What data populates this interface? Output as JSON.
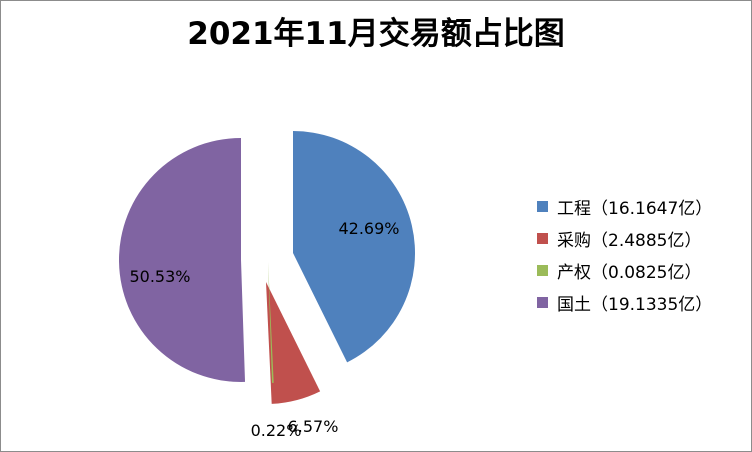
{
  "chart_data": {
    "type": "pie",
    "title": "2021年11月交易额占比图",
    "categories": [
      "工程",
      "采购",
      "产权",
      "国土"
    ],
    "values": [
      16.1647,
      2.4885,
      0.0825,
      19.1335
    ],
    "percent_labels": [
      "42.69%",
      "6.57%",
      "0.22%",
      "50.53%"
    ],
    "legend": [
      {
        "label": "工程（16.1647亿）",
        "color": "#4f81bd"
      },
      {
        "label": "采购（2.4885亿）",
        "color": "#c0504d"
      },
      {
        "label": "产权（0.0825亿）",
        "color": "#9bbb59"
      },
      {
        "label": "国土（19.1335亿）",
        "color": "#8064a2"
      }
    ],
    "colors": [
      "#4f81bd",
      "#c0504d",
      "#9bbb59",
      "#8064a2"
    ],
    "legend_position": "right",
    "exploded": true
  }
}
